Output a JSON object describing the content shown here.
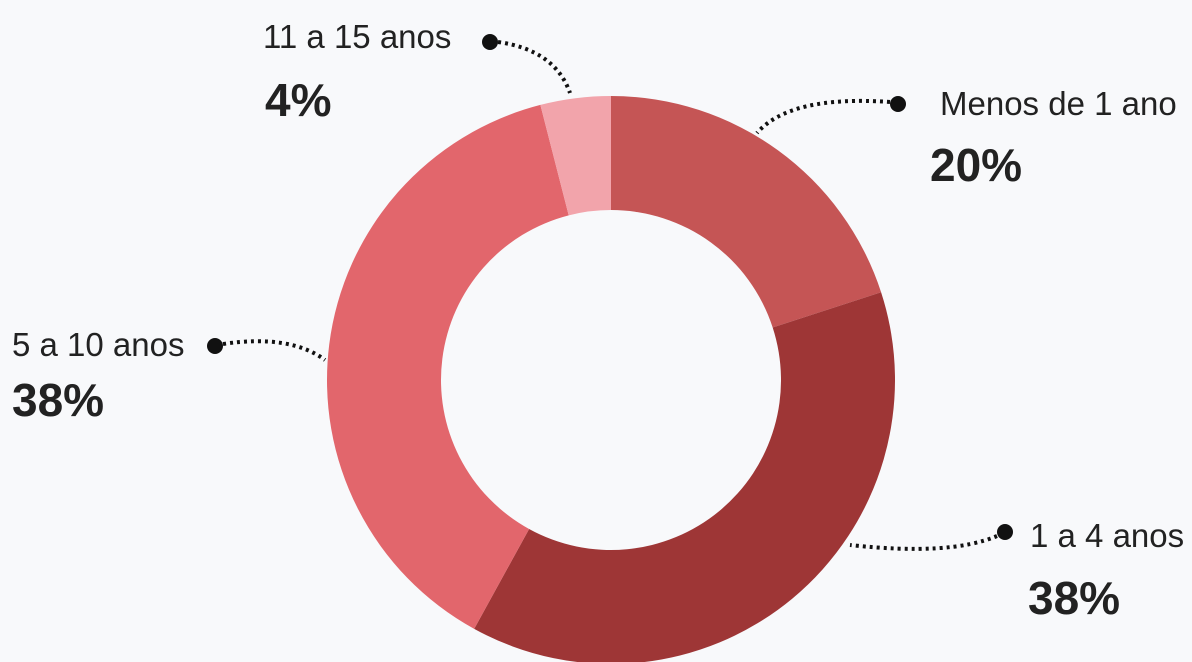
{
  "chart_data": {
    "type": "donut",
    "categories": [
      "Menos de 1 ano",
      "1 a 4 anos",
      "5 a 10 anos",
      "11 a 15 anos"
    ],
    "values": [
      20,
      38,
      38,
      4
    ],
    "value_labels": [
      "20%",
      "38%",
      "38%",
      "4%"
    ],
    "colors": [
      "#c55555",
      "#9e3636",
      "#e2666c",
      "#f2a4ab"
    ]
  }
}
